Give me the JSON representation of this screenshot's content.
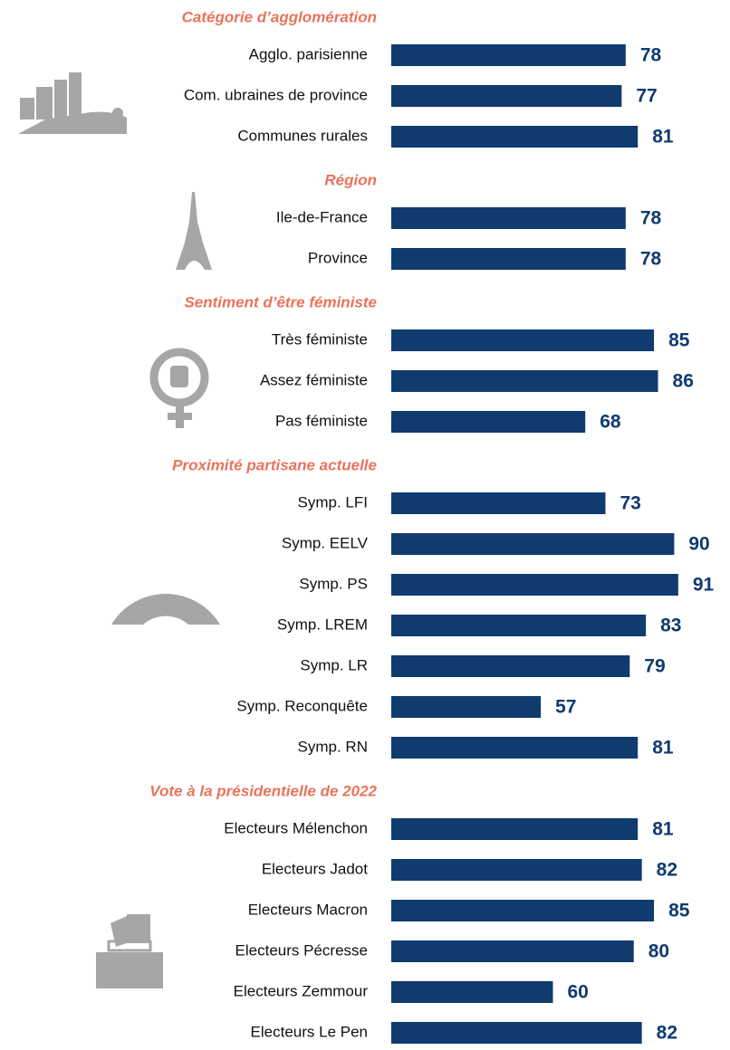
{
  "chart_data": {
    "type": "bar",
    "color": "#0f3b6f",
    "xlim": [
      20,
      100
    ],
    "groups": [
      {
        "title": "Catégorie d’agglomération",
        "categories": [
          "Agglo. parisienne",
          "Com. ubraines de province",
          "Communes rurales"
        ],
        "values": [
          78,
          77,
          81
        ]
      },
      {
        "title": "Région",
        "categories": [
          "Ile-de-France",
          "Province"
        ],
        "values": [
          78,
          78
        ]
      },
      {
        "title": "Sentiment d’être féministe",
        "categories": [
          "Très féministe",
          "Assez féministe",
          "Pas féministe"
        ],
        "values": [
          85,
          86,
          68
        ]
      },
      {
        "title": "Proximité partisane actuelle",
        "categories": [
          "Symp. LFI",
          "Symp. EELV",
          "Symp. PS",
          "Symp. LREM",
          "Symp. LR",
          "Symp. Reconquête",
          "Symp. RN"
        ],
        "values": [
          73,
          90,
          91,
          83,
          79,
          57,
          81
        ]
      },
      {
        "title": "Vote à la présidentielle de 2022",
        "categories": [
          "Electeurs Mélenchon",
          "Electeurs Jadot",
          "Electeurs Macron",
          "Electeurs Pécresse",
          "Electeurs Zemmour",
          "Electeurs Le Pen"
        ],
        "values": [
          81,
          82,
          85,
          80,
          60,
          82
        ]
      }
    ]
  }
}
